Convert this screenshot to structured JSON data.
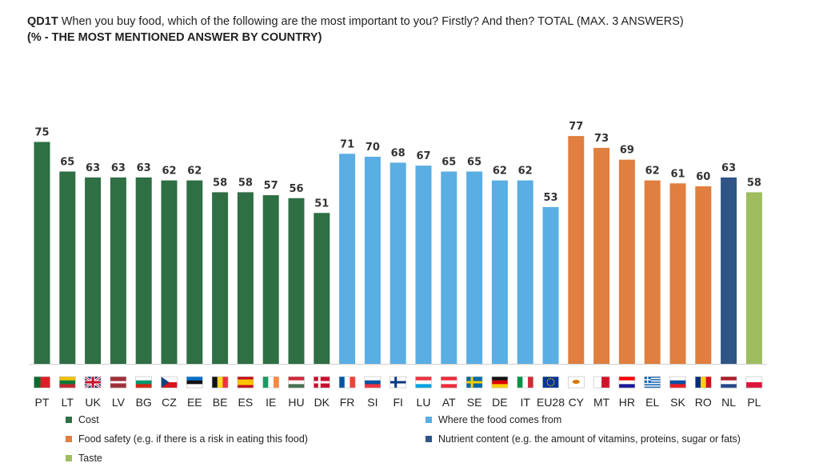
{
  "title": {
    "code": "QD1T",
    "text": " When you buy food, which of the following are the most important to you? Firstly? And then? TOTAL (MAX. 3 ANSWERS)",
    "subtitle": "(% - THE MOST MENTIONED ANSWER BY COUNTRY)"
  },
  "chart_data": {
    "type": "bar",
    "categories": [
      "PT",
      "LT",
      "UK",
      "LV",
      "BG",
      "CZ",
      "EE",
      "BE",
      "ES",
      "IE",
      "HU",
      "DK",
      "FR",
      "SI",
      "FI",
      "LU",
      "AT",
      "SE",
      "DE",
      "IT",
      "EU28",
      "CY",
      "MT",
      "HR",
      "EL",
      "SK",
      "RO",
      "NL",
      "PL"
    ],
    "values": [
      75,
      65,
      63,
      63,
      63,
      62,
      62,
      58,
      58,
      57,
      56,
      51,
      71,
      70,
      68,
      67,
      65,
      65,
      62,
      62,
      53,
      77,
      73,
      69,
      62,
      61,
      60,
      63,
      58
    ],
    "answer": [
      "cost",
      "cost",
      "cost",
      "cost",
      "cost",
      "cost",
      "cost",
      "cost",
      "cost",
      "cost",
      "cost",
      "cost",
      "origin",
      "origin",
      "origin",
      "origin",
      "origin",
      "origin",
      "origin",
      "origin",
      "origin",
      "safety",
      "safety",
      "safety",
      "safety",
      "safety",
      "safety",
      "nutrient",
      "taste"
    ],
    "ylim": [
      0,
      80
    ],
    "grid": false,
    "series_colors": {
      "cost": "#2e6f44",
      "origin": "#5aaee3",
      "safety": "#e07f3f",
      "nutrient": "#2f5586",
      "taste": "#9ebd5e"
    },
    "legend": [
      {
        "key": "cost",
        "label": "Cost"
      },
      {
        "key": "origin",
        "label": "Where the food comes from"
      },
      {
        "key": "safety",
        "label": "Food safety (e.g. if there is a risk in eating this food)"
      },
      {
        "key": "nutrient",
        "label": "Nutrient content (e.g. the amount of vitamins, proteins, sugar or fats)"
      },
      {
        "key": "taste",
        "label": "Taste"
      }
    ]
  },
  "flags": {
    "PT": {
      "type": "v",
      "colors": [
        "#0a6b2f",
        "#d91f26"
      ],
      "ratio": [
        2,
        3
      ]
    },
    "LT": {
      "type": "h",
      "colors": [
        "#f4c300",
        "#0a7a3c",
        "#c1272d"
      ]
    },
    "UK": {
      "type": "uk",
      "colors": [
        "#012169",
        "#ffffff",
        "#c8102e"
      ]
    },
    "LV": {
      "type": "h",
      "colors": [
        "#9e3039",
        "#ffffff",
        "#9e3039"
      ],
      "ratio": [
        2,
        1,
        2
      ]
    },
    "BG": {
      "type": "h",
      "colors": [
        "#ffffff",
        "#00966e",
        "#d62612"
      ]
    },
    "CZ": {
      "type": "cz",
      "colors": [
        "#ffffff",
        "#d7141a",
        "#11457e"
      ]
    },
    "EE": {
      "type": "h",
      "colors": [
        "#0072ce",
        "#111111",
        "#ffffff"
      ]
    },
    "BE": {
      "type": "v",
      "colors": [
        "#111111",
        "#fdda24",
        "#ef3340"
      ]
    },
    "ES": {
      "type": "h",
      "colors": [
        "#c60b1e",
        "#ffc400",
        "#c60b1e"
      ],
      "ratio": [
        1,
        2,
        1
      ]
    },
    "IE": {
      "type": "v",
      "colors": [
        "#169b62",
        "#ffffff",
        "#ff883e"
      ]
    },
    "HU": {
      "type": "h",
      "colors": [
        "#ce2939",
        "#ffffff",
        "#477050"
      ]
    },
    "DK": {
      "type": "nordic",
      "colors": [
        "#c8102e",
        "#ffffff"
      ]
    },
    "FR": {
      "type": "v",
      "colors": [
        "#0055a4",
        "#ffffff",
        "#ef4135"
      ]
    },
    "SI": {
      "type": "h",
      "colors": [
        "#ffffff",
        "#0055a4",
        "#ef3340"
      ]
    },
    "FI": {
      "type": "nordic",
      "colors": [
        "#ffffff",
        "#003580"
      ]
    },
    "LU": {
      "type": "h",
      "colors": [
        "#ef3340",
        "#ffffff",
        "#00a3e0"
      ]
    },
    "AT": {
      "type": "h",
      "colors": [
        "#ed2939",
        "#ffffff",
        "#ed2939"
      ]
    },
    "SE": {
      "type": "nordic",
      "colors": [
        "#006aa7",
        "#fecc00"
      ]
    },
    "DE": {
      "type": "h",
      "colors": [
        "#111111",
        "#dd0000",
        "#ffce00"
      ]
    },
    "IT": {
      "type": "v",
      "colors": [
        "#009246",
        "#ffffff",
        "#ce2b37"
      ]
    },
    "EU28": {
      "type": "eu",
      "colors": [
        "#003399",
        "#ffcc00"
      ]
    },
    "CY": {
      "type": "cy",
      "colors": [
        "#ffffff",
        "#d57800"
      ]
    },
    "MT": {
      "type": "v",
      "colors": [
        "#ffffff",
        "#cf142b"
      ]
    },
    "HR": {
      "type": "h",
      "colors": [
        "#ff0000",
        "#ffffff",
        "#171796"
      ]
    },
    "EL": {
      "type": "el",
      "colors": [
        "#0d5eaf",
        "#ffffff"
      ]
    },
    "SK": {
      "type": "h",
      "colors": [
        "#ffffff",
        "#0b4ea2",
        "#ee1c25"
      ]
    },
    "RO": {
      "type": "v",
      "colors": [
        "#002b7f",
        "#fcd116",
        "#ce1126"
      ]
    },
    "NL": {
      "type": "h",
      "colors": [
        "#ae1c28",
        "#ffffff",
        "#21468b"
      ]
    },
    "PL": {
      "type": "h",
      "colors": [
        "#ffffff",
        "#dc143c"
      ]
    }
  }
}
